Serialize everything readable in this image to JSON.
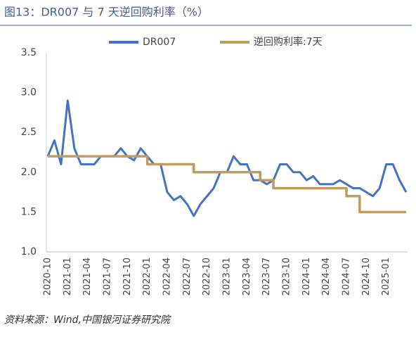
{
  "chart_data": {
    "type": "line",
    "title": "图13：DR007 与 7 天逆回购利率（%）",
    "source": "资料来源：Wind,中国银河证券研究院",
    "categories": [
      "2020-10",
      null,
      null,
      "2021-01",
      null,
      null,
      "2021-04",
      null,
      null,
      "2021-07",
      null,
      null,
      "2021-10",
      null,
      null,
      "2022-01",
      null,
      null,
      "2022-04",
      null,
      null,
      "2022-07",
      null,
      null,
      "2022-10",
      null,
      null,
      "2023-01",
      null,
      null,
      "2023-04",
      null,
      null,
      "2023-07",
      null,
      null,
      "2023-10",
      null,
      null,
      "2024-01",
      null,
      null,
      "2024-04",
      null,
      null,
      "2024-07",
      null,
      null,
      "2024-10",
      null,
      null,
      "2025-01",
      null,
      null,
      null
    ],
    "series": [
      {
        "name": "DR007",
        "color": "#4472c4",
        "values": [
          2.2,
          2.4,
          2.1,
          2.9,
          2.3,
          2.1,
          2.1,
          2.1,
          2.2,
          2.2,
          2.2,
          2.3,
          2.2,
          2.15,
          2.3,
          2.2,
          2.1,
          2.1,
          1.75,
          1.65,
          1.7,
          1.6,
          1.45,
          1.6,
          1.7,
          1.8,
          2.0,
          2.0,
          2.2,
          2.1,
          2.1,
          1.9,
          1.9,
          1.85,
          1.9,
          2.1,
          2.1,
          2.0,
          2.0,
          1.9,
          1.95,
          1.85,
          1.85,
          1.85,
          1.9,
          1.85,
          1.8,
          1.8,
          1.75,
          1.7,
          1.8,
          2.1,
          2.1,
          1.9,
          1.75
        ]
      },
      {
        "name": "逆回购利率:7天",
        "color": "#bf9b5f",
        "step": true,
        "values": [
          2.2,
          2.2,
          2.2,
          2.2,
          2.2,
          2.2,
          2.2,
          2.2,
          2.2,
          2.2,
          2.2,
          2.2,
          2.2,
          2.2,
          2.2,
          2.1,
          2.1,
          2.1,
          2.1,
          2.1,
          2.1,
          2.1,
          2.0,
          2.0,
          2.0,
          2.0,
          2.0,
          2.0,
          2.0,
          2.0,
          2.0,
          2.0,
          1.9,
          1.9,
          1.8,
          1.8,
          1.8,
          1.8,
          1.8,
          1.8,
          1.8,
          1.8,
          1.8,
          1.8,
          1.8,
          1.7,
          1.7,
          1.5,
          1.5,
          1.5,
          1.5,
          1.5,
          1.5,
          1.5,
          1.5
        ]
      }
    ],
    "ylim": [
      1,
      3.5
    ],
    "yticks": [
      {
        "value": 1,
        "label": "1.0"
      },
      1.5,
      {
        "value": 2,
        "label": "2.0"
      },
      2.5,
      {
        "value": 3,
        "label": "3.0"
      },
      3.5
    ],
    "grid": false,
    "legend": "top"
  }
}
